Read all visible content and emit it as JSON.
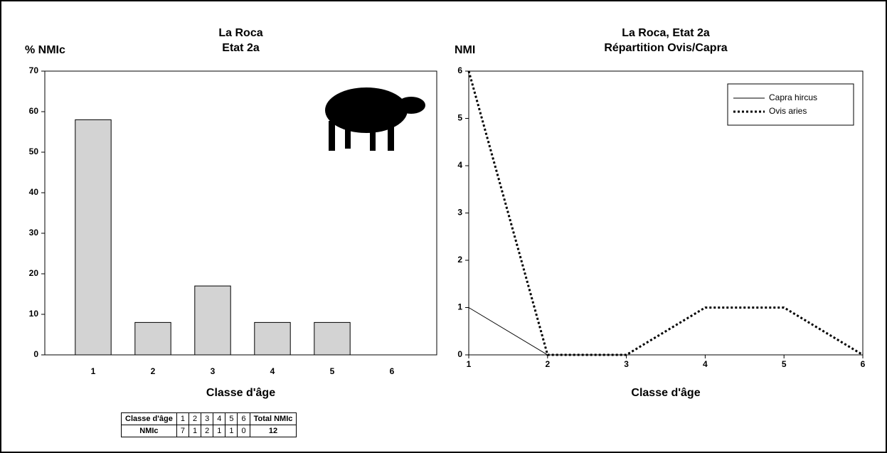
{
  "chart_data": [
    {
      "type": "bar",
      "title": "La Roca",
      "subtitle": "Etat 2a",
      "y_label": "% NMIc",
      "x_label": "Classe d'âge",
      "categories": [
        "1",
        "2",
        "3",
        "4",
        "5",
        "6"
      ],
      "values": [
        58,
        8,
        17,
        8,
        8,
        0
      ],
      "color": "#d3d3d3",
      "ylim": [
        0,
        70
      ],
      "yticks": [
        0,
        10,
        20,
        30,
        40,
        50,
        60,
        70
      ],
      "grid": false
    },
    {
      "type": "line",
      "title": "La Roca, Etat 2a",
      "subtitle": "Répartition Ovis/Capra",
      "y_label": "NMI",
      "x_label": "Classe d'âge",
      "x": [
        1,
        2,
        3,
        4,
        5,
        6
      ],
      "series": [
        {
          "name": "Capra hircus",
          "color": "#000000",
          "dash": "solid",
          "values": [
            1,
            0,
            0,
            0,
            0,
            0
          ]
        },
        {
          "name": "Ovis aries",
          "color": "#000000",
          "dash": "dotted",
          "values": [
            6,
            0,
            0,
            1,
            1,
            0
          ]
        }
      ],
      "xlim": [
        1,
        6
      ],
      "xticks": [
        1,
        2,
        3,
        4,
        5,
        6
      ],
      "ylim": [
        0,
        6
      ],
      "yticks": [
        0,
        1,
        2,
        3,
        4,
        5,
        6
      ],
      "grid": false,
      "legend": "upper-right"
    }
  ],
  "table": {
    "header": [
      "Classe d'âge",
      "1",
      "2",
      "3",
      "4",
      "5",
      "6",
      "Total NMIc"
    ],
    "rows": [
      [
        "NMIc",
        7,
        1,
        2,
        1,
        1,
        0,
        12
      ]
    ]
  }
}
